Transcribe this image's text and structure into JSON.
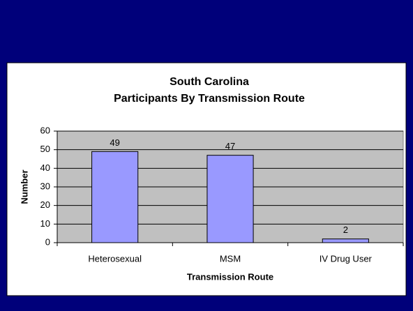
{
  "chart_data": {
    "type": "bar",
    "title": [
      "South Carolina",
      "Participants By Transmission Route"
    ],
    "x_label": "Transmission Route",
    "y_label": "Number",
    "categories": [
      "Heterosexual",
      "MSM",
      "IV Drug User"
    ],
    "values": [
      49,
      47,
      2
    ],
    "color": "#9999ff",
    "ylim": [
      0,
      60
    ],
    "yticks": [
      0,
      10,
      20,
      30,
      40,
      50,
      60
    ],
    "grid": true
  }
}
